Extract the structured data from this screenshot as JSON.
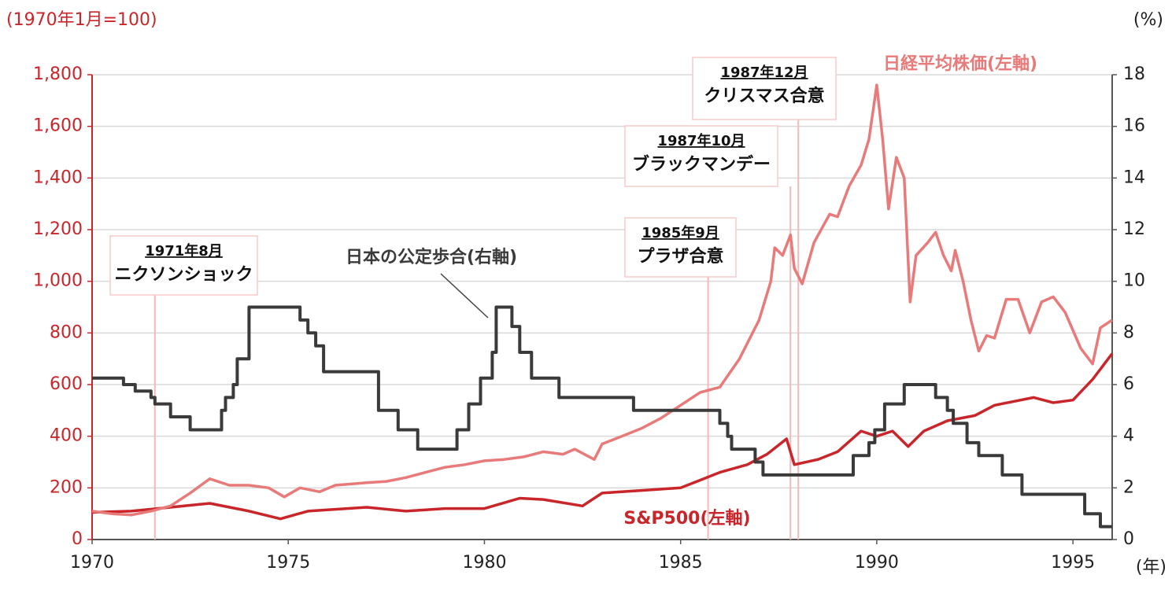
{
  "chart_data": {
    "type": "line",
    "y_axis_label": "(1970年1月=100)",
    "y2_axis_label": "(%)",
    "x_axis_label": "(年)",
    "xlim": [
      1970,
      1996
    ],
    "xticks": [
      1970,
      1975,
      1980,
      1985,
      1990,
      1995
    ],
    "ylim": [
      0,
      1800
    ],
    "yticks": [
      0,
      200,
      400,
      600,
      800,
      {
        "value": 1000,
        "label": "1,000"
      },
      {
        "value": 1200,
        "label": "1,200"
      },
      {
        "value": 1400,
        "label": "1,400"
      },
      {
        "value": 1600,
        "label": "1,600"
      },
      {
        "value": 1800,
        "label": "1,800"
      }
    ],
    "y2lim": [
      0,
      18
    ],
    "y2ticks": [
      0,
      2,
      4,
      6,
      8,
      10,
      12,
      14,
      16,
      18
    ],
    "grid": true,
    "series": [
      {
        "name": "日経平均株価(左軸)",
        "color": "#e87a7a",
        "x": [
          1970,
          1970.5,
          1971,
          1971.5,
          1972,
          1972.5,
          1973,
          1973.5,
          1974,
          1974.5,
          1974.9,
          1975.3,
          1975.8,
          1976.2,
          1977,
          1977.5,
          1978,
          1978.5,
          1979,
          1979.5,
          1980,
          1980.5,
          1981,
          1981.5,
          1982,
          1982.3,
          1982.8,
          1983,
          1983.5,
          1984,
          1984.5,
          1985,
          1985.5,
          1986,
          1986.5,
          1987,
          1987.3,
          1987.4,
          1987.6,
          1987.8,
          1987.9,
          1988.1,
          1988.4,
          1988.8,
          1989,
          1989.3,
          1989.6,
          1989.8,
          1990,
          1990.15,
          1990.3,
          1990.5,
          1990.7,
          1990.85,
          1991,
          1991.3,
          1991.5,
          1991.7,
          1991.9,
          1992,
          1992.2,
          1992.4,
          1992.6,
          1992.8,
          1993,
          1993.3,
          1993.6,
          1993.9,
          1994.2,
          1994.5,
          1994.8,
          1995.2,
          1995.5,
          1995.7,
          1996
        ],
        "values": [
          110,
          100,
          95,
          110,
          130,
          180,
          235,
          210,
          210,
          200,
          165,
          200,
          185,
          210,
          220,
          225,
          240,
          260,
          280,
          290,
          305,
          310,
          320,
          340,
          330,
          350,
          310,
          370,
          400,
          430,
          470,
          520,
          570,
          590,
          700,
          850,
          1000,
          1130,
          1100,
          1180,
          1050,
          990,
          1150,
          1260,
          1250,
          1370,
          1450,
          1550,
          1760,
          1550,
          1280,
          1480,
          1400,
          920,
          1100,
          1150,
          1190,
          1100,
          1040,
          1120,
          1000,
          850,
          730,
          790,
          780,
          930,
          930,
          800,
          920,
          940,
          880,
          740,
          680,
          820,
          850
        ]
      },
      {
        "name": "S&P500(左軸)",
        "color": "#c8262a",
        "x": [
          1970,
          1971,
          1972,
          1973,
          1974,
          1974.8,
          1975.5,
          1976,
          1977,
          1978,
          1979,
          1980,
          1980.9,
          1981.5,
          1982.5,
          1983,
          1984,
          1985,
          1985.5,
          1986,
          1986.7,
          1987.2,
          1987.7,
          1987.9,
          1988.5,
          1989,
          1989.6,
          1990,
          1990.4,
          1990.8,
          1991.2,
          1991.8,
          1992.5,
          1993,
          1994,
          1994.5,
          1995,
          1995.5,
          1996
        ],
        "values": [
          105,
          110,
          125,
          140,
          110,
          80,
          110,
          115,
          125,
          110,
          120,
          120,
          160,
          155,
          130,
          180,
          190,
          200,
          230,
          260,
          290,
          330,
          390,
          290,
          310,
          340,
          420,
          400,
          420,
          360,
          420,
          460,
          480,
          520,
          550,
          530,
          540,
          620,
          720
        ]
      },
      {
        "name": "日本の公定歩合(右軸)",
        "color": "#3a3a3a",
        "axis": "y2",
        "x": [
          1970,
          1970.8,
          1970.8,
          1971.1,
          1971.1,
          1971.5,
          1971.5,
          1971.6,
          1971.6,
          1972.0,
          1972.0,
          1972.5,
          1972.5,
          1973.3,
          1973.3,
          1973.4,
          1973.4,
          1973.6,
          1973.6,
          1973.7,
          1973.7,
          1974.0,
          1974.0,
          1975.3,
          1975.3,
          1975.5,
          1975.5,
          1975.7,
          1975.7,
          1975.9,
          1975.9,
          1977.3,
          1977.3,
          1977.8,
          1977.8,
          1978.3,
          1978.3,
          1979.3,
          1979.3,
          1979.6,
          1979.6,
          1979.9,
          1979.9,
          1980.2,
          1980.2,
          1980.3,
          1980.3,
          1980.7,
          1980.7,
          1980.9,
          1980.9,
          1981.2,
          1981.2,
          1981.9,
          1981.9,
          1983.8,
          1983.8,
          1986.0,
          1986.0,
          1986.2,
          1986.2,
          1986.3,
          1986.3,
          1986.9,
          1986.9,
          1987.1,
          1987.1,
          1989.4,
          1989.4,
          1989.8,
          1989.8,
          1989.95,
          1989.95,
          1990.2,
          1990.2,
          1990.7,
          1990.7,
          1991.5,
          1991.5,
          1991.8,
          1991.8,
          1991.95,
          1991.95,
          1992.3,
          1992.3,
          1992.6,
          1992.6,
          1993.2,
          1993.2,
          1993.7,
          1993.7,
          1995.3,
          1995.3,
          1995.7,
          1995.7,
          1996
        ],
        "values": [
          6.25,
          6.25,
          6,
          6,
          5.75,
          5.75,
          5.5,
          5.5,
          5.25,
          5.25,
          4.75,
          4.75,
          4.25,
          4.25,
          5,
          5,
          5.5,
          5.5,
          6,
          6,
          7,
          7,
          9,
          9,
          8.5,
          8.5,
          8,
          8,
          7.5,
          7.5,
          6.5,
          6.5,
          5,
          5,
          4.25,
          4.25,
          3.5,
          3.5,
          4.25,
          4.25,
          5.25,
          5.25,
          6.25,
          6.25,
          7.25,
          7.25,
          9,
          9,
          8.25,
          8.25,
          7.25,
          7.25,
          6.25,
          6.25,
          5.5,
          5.5,
          5,
          5,
          4.5,
          4.5,
          4,
          4,
          3.5,
          3.5,
          3,
          3,
          2.5,
          2.5,
          3.25,
          3.25,
          3.75,
          3.75,
          4.25,
          4.25,
          5.25,
          5.25,
          6,
          6,
          5.5,
          5.5,
          5,
          5,
          4.5,
          4.5,
          3.75,
          3.75,
          3.25,
          3.25,
          2.5,
          2.5,
          1.75,
          1.75,
          1,
          1,
          0.5,
          0.5
        ]
      }
    ],
    "annotations": [
      {
        "title": "1971年8月",
        "text": "ニクソンショック",
        "x": 1971.6
      },
      {
        "title": "1985年9月",
        "text": "プラザ合意",
        "x": 1985.7
      },
      {
        "title": "1987年10月",
        "text": "ブラックマンデー",
        "x": 1987.8
      },
      {
        "title": "1987年12月",
        "text": "クリスマス合意",
        "x": 1988.0
      }
    ]
  }
}
